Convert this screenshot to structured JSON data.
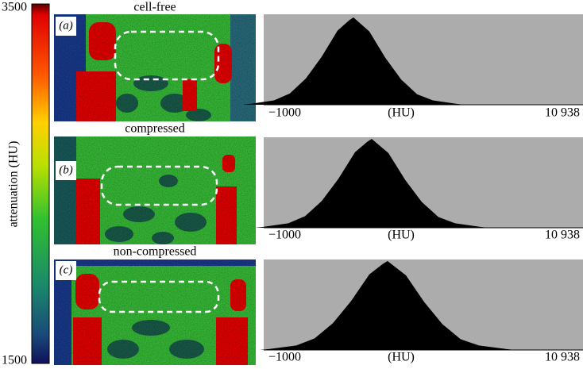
{
  "colorbar": {
    "label": "attenuation (HU)",
    "max": "3500",
    "min": "1500"
  },
  "panels": [
    {
      "tag": "(a)",
      "title": "cell-free",
      "histogram": {
        "x_min": "−1000",
        "x_label": "(HU)",
        "x_max": "10 938"
      }
    },
    {
      "tag": "(b)",
      "title": "compressed",
      "histogram": {
        "x_min": "−1000",
        "x_label": "(HU)",
        "x_max": "10 938"
      }
    },
    {
      "tag": "(c)",
      "title": "non-compressed",
      "histogram": {
        "x_min": "−1000",
        "x_label": "(HU)",
        "x_max": "10 938"
      }
    }
  ]
}
